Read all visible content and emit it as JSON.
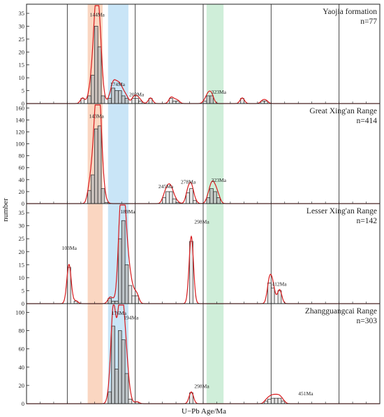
{
  "chart_data": {
    "type": "bar",
    "xlabel": "U−Pb Age/Ma",
    "ylabel": "number",
    "xlim": [
      40,
      560
    ],
    "x_grid_lines": [
      100,
      200,
      300,
      400,
      500
    ],
    "highlight_bands": [
      {
        "from": 130,
        "to": 152,
        "color": "#f9cfb6"
      },
      {
        "from": 160,
        "to": 190,
        "color": "#bfe1f6"
      },
      {
        "from": 305,
        "to": 330,
        "color": "#c7ebd2"
      }
    ],
    "bar_fill": "#dcdcdc",
    "bar_fill_shaded": "#b8b8b8",
    "curve_color": "#d7191c",
    "panels": [
      {
        "title": "Yaojia formation",
        "n": "n=77",
        "ylim": [
          0,
          38
        ],
        "yticks": [
          0,
          5,
          10,
          15,
          20,
          25,
          30,
          35
        ],
        "bars": [
          [
            120,
            2
          ],
          [
            130,
            3
          ],
          [
            135,
            11
          ],
          [
            140,
            30
          ],
          [
            145,
            22
          ],
          [
            150,
            3
          ],
          [
            160,
            2
          ],
          [
            165,
            6
          ],
          [
            170,
            5
          ],
          [
            175,
            5
          ],
          [
            180,
            3
          ],
          [
            185,
            2
          ],
          [
            195,
            2
          ],
          [
            200,
            2
          ],
          [
            205,
            1
          ],
          [
            220,
            2
          ],
          [
            250,
            2
          ],
          [
            255,
            1
          ],
          [
            260,
            1
          ],
          [
            300,
            1
          ],
          [
            305,
            3
          ],
          [
            310,
            3
          ],
          [
            355,
            2
          ],
          [
            385,
            1
          ],
          [
            390,
            1
          ]
        ],
        "peaks": [
          [
            "144Ma",
            144,
            33
          ],
          [
            "174Ma",
            174,
            6
          ],
          [
            "202Ma",
            202,
            2
          ],
          [
            "323Ma",
            323,
            3
          ]
        ]
      },
      {
        "title": "Great Xing'an Range",
        "n": "n=414",
        "ylim": [
          0,
          165
        ],
        "yticks": [
          0,
          20,
          40,
          60,
          80,
          100,
          120,
          140,
          160
        ],
        "bars": [
          [
            130,
            22
          ],
          [
            135,
            48
          ],
          [
            140,
            125
          ],
          [
            145,
            130
          ],
          [
            150,
            25
          ],
          [
            155,
            2
          ],
          [
            240,
            10
          ],
          [
            245,
            20
          ],
          [
            250,
            20
          ],
          [
            255,
            8
          ],
          [
            260,
            2
          ],
          [
            275,
            18
          ],
          [
            280,
            25
          ],
          [
            285,
            5
          ],
          [
            305,
            10
          ],
          [
            310,
            25
          ],
          [
            315,
            20
          ],
          [
            320,
            10
          ]
        ],
        "peaks": [
          [
            "143Ma",
            143,
            140
          ],
          [
            "245Ma",
            245,
            22
          ],
          [
            "278Ma",
            278,
            30
          ],
          [
            "323Ma",
            323,
            33
          ]
        ]
      },
      {
        "title": "Lesser Xing'an Range",
        "n": "n=142",
        "ylim": [
          0,
          38
        ],
        "yticks": [
          0,
          5,
          10,
          15,
          20,
          25,
          30,
          35
        ],
        "bars": [
          [
            100,
            14
          ],
          [
            110,
            1
          ],
          [
            160,
            2
          ],
          [
            165,
            1
          ],
          [
            170,
            1
          ],
          [
            175,
            25
          ],
          [
            180,
            32
          ],
          [
            185,
            15
          ],
          [
            190,
            7
          ],
          [
            195,
            3
          ],
          [
            200,
            3
          ],
          [
            280,
            24
          ],
          [
            395,
            8
          ],
          [
            400,
            6
          ],
          [
            410,
            5
          ]
        ],
        "peaks": [
          [
            "103Ma",
            103,
            20
          ],
          [
            "189Ma",
            189,
            34
          ],
          [
            "298Ma",
            298,
            30
          ],
          [
            "412Ma",
            412,
            6
          ]
        ]
      },
      {
        "title": "Zhangguangcai Range",
        "n": "n=303",
        "ylim": [
          0,
          108
        ],
        "yticks": [
          0,
          20,
          40,
          60,
          80,
          100
        ],
        "bars": [
          [
            160,
            13
          ],
          [
            165,
            85
          ],
          [
            170,
            38
          ],
          [
            175,
            80
          ],
          [
            180,
            70
          ],
          [
            185,
            33
          ],
          [
            190,
            5
          ],
          [
            200,
            2
          ],
          [
            280,
            12
          ],
          [
            390,
            3
          ],
          [
            395,
            5
          ],
          [
            400,
            6
          ],
          [
            405,
            6
          ],
          [
            410,
            6
          ],
          [
            415,
            3
          ]
        ],
        "peaks": [
          [
            "176Ma",
            176,
            95
          ],
          [
            "194Ma",
            194,
            90
          ],
          [
            "298Ma",
            298,
            15
          ],
          [
            "451Ma",
            451,
            7
          ]
        ]
      }
    ]
  }
}
